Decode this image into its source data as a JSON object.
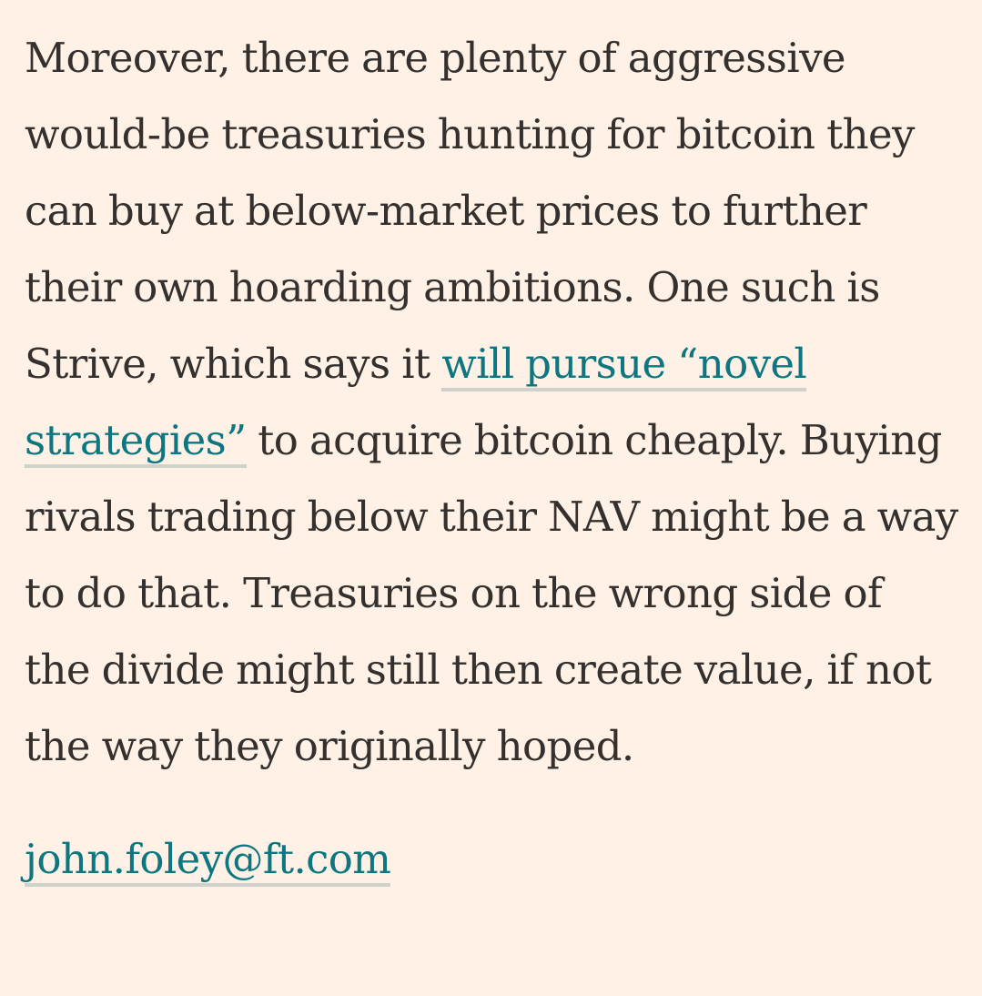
{
  "article": {
    "paragraph": {
      "text_before_link": "Moreover, there are plenty of aggressive would-be treasuries hunting for bitcoin they can buy at below-market prices to further their own hoarding ambitions. One such is Strive, which says it ",
      "link_text": "will pursue “novel strategies”",
      "text_after_link": " to acquire bitcoin cheaply. Buying rivals trading below their NAV might be a way to do that. Treasuries on the wrong side of the divide might still then create value, if not the way they originally hoped."
    },
    "author_email": "john.foley@ft.com"
  },
  "colors": {
    "background": "#fff1e5",
    "text": "#33302e",
    "link": "#0d7680",
    "link_underline": "#cfd2cc"
  }
}
